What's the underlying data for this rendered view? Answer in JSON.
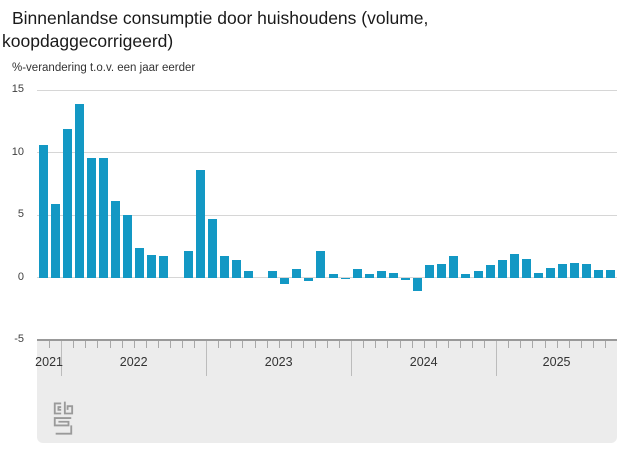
{
  "title": {
    "full": "Binnenlandse consumptie door huishoudens (volume, koopdaggecorrigeerd)",
    "line1": "Binnenlandse consumptie door huishoudens (volume,",
    "line2": "koopdaggecorrigeerd)"
  },
  "subtitle": "%-verandering t.o.v. een jaar eerder",
  "colors": {
    "bar": "#1398c4",
    "grid": "#d6d6d6",
    "panel": "#ececec",
    "panel_border": "#999999",
    "month_tick": "#a8a8a8",
    "year_line": "#bcbcbc",
    "title_text": "#1a1a1a",
    "axis_text": "#404040",
    "logo": "#9a9a9a"
  },
  "y_axis": {
    "ticks": [
      15,
      10,
      5,
      0,
      -5
    ],
    "min": -5,
    "max": 15
  },
  "x_axis": {
    "year_labels": [
      "2021",
      "2022",
      "2023",
      "2024",
      "2025"
    ]
  },
  "branding": {
    "logo": "cbs-logo"
  },
  "chart_data": {
    "type": "bar",
    "title": "Binnenlandse consumptie door huishoudens (volume, koopdaggecorrigeerd)",
    "ylabel": "%-verandering t.o.v. een jaar eerder",
    "unit": "%",
    "ylim": [
      -5,
      15
    ],
    "grid": true,
    "legend_position": "none",
    "x": [
      "2021-11",
      "2021-12",
      "2022-01",
      "2022-02",
      "2022-03",
      "2022-04",
      "2022-05",
      "2022-06",
      "2022-07",
      "2022-08",
      "2022-09",
      "2022-10",
      "2022-11",
      "2022-12",
      "2023-01",
      "2023-02",
      "2023-03",
      "2023-04",
      "2023-05",
      "2023-06",
      "2023-07",
      "2023-08",
      "2023-09",
      "2023-10",
      "2023-11",
      "2023-12",
      "2024-01",
      "2024-02",
      "2024-03",
      "2024-04",
      "2024-05",
      "2024-06",
      "2024-07",
      "2024-08",
      "2024-09",
      "2024-10",
      "2024-11",
      "2024-12",
      "2025-01",
      "2025-02",
      "2025-03",
      "2025-04",
      "2025-05",
      "2025-06",
      "2025-07",
      "2025-08",
      "2025-09",
      "2025-10"
    ],
    "values": [
      10.6,
      5.9,
      11.9,
      13.9,
      9.6,
      9.6,
      6.1,
      5.0,
      2.4,
      1.8,
      1.7,
      0.0,
      2.1,
      8.6,
      4.7,
      1.7,
      1.4,
      0.5,
      0.0,
      0.5,
      -0.5,
      0.7,
      -0.3,
      2.1,
      0.3,
      -0.1,
      0.7,
      0.3,
      0.5,
      0.4,
      -0.2,
      -1.1,
      1.0,
      1.1,
      1.7,
      0.3,
      0.5,
      1.0,
      1.4,
      1.9,
      1.5,
      0.4,
      0.8,
      1.1,
      1.2,
      1.1,
      0.6,
      0.6
    ]
  }
}
